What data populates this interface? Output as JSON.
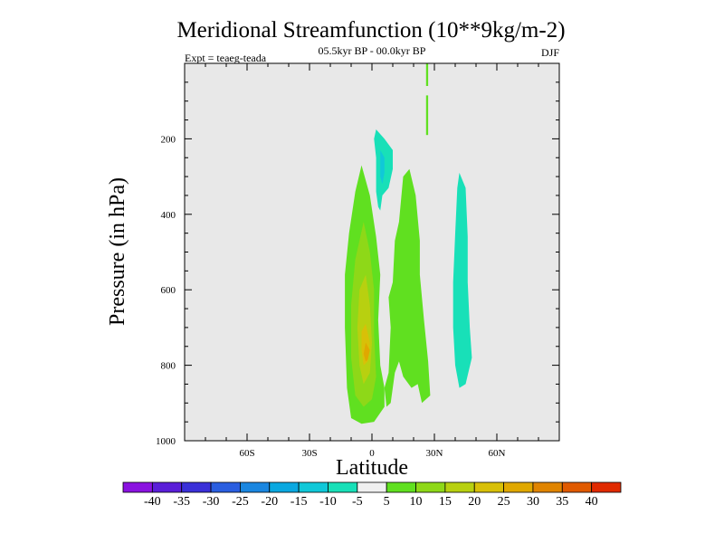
{
  "chart_data": {
    "type": "contour",
    "title": "Meridional Streamfunction (10**9kg/m-2)",
    "subtitle": "05.5kyr BP - 00.0kyr BP",
    "left_note": "Expt = teaeg-teada",
    "right_note": "DJF",
    "xlabel": "Latitude",
    "ylabel": "Pressure (in hPa)",
    "xlim": [
      -90,
      90
    ],
    "ylim": [
      1000,
      0
    ],
    "x_ticks": [
      {
        "value": -60,
        "label": "60S"
      },
      {
        "value": -30,
        "label": "30S"
      },
      {
        "value": 0,
        "label": "0"
      },
      {
        "value": 30,
        "label": "30N"
      },
      {
        "value": 60,
        "label": "60N"
      }
    ],
    "y_ticks": [
      {
        "value": 200,
        "label": "200"
      },
      {
        "value": 400,
        "label": "400"
      },
      {
        "value": 600,
        "label": "600"
      },
      {
        "value": 800,
        "label": "800"
      },
      {
        "value": 1000,
        "label": "1000"
      }
    ],
    "colorbar": {
      "labels": [
        "-40",
        "-35",
        "-30",
        "-25",
        "-20",
        "-15",
        "-10",
        "-5",
        "5",
        "10",
        "15",
        "20",
        "25",
        "30",
        "35",
        "40"
      ],
      "colors": [
        "#8a12e0",
        "#5a1ed8",
        "#3a30d8",
        "#2a5ee0",
        "#1a86e0",
        "#0aa8e0",
        "#10c8d8",
        "#18e0b8",
        "#f0f0f0",
        "#60e020",
        "#8ed818",
        "#b8d010",
        "#d8c008",
        "#e0a800",
        "#e08400",
        "#e05a00",
        "#e02a00"
      ]
    },
    "regions": [
      {
        "name": "positive-5-10-main",
        "level": "5-10",
        "color": "#60e020",
        "points": [
          [
            -5,
            270
          ],
          [
            -1,
            350
          ],
          [
            2,
            460
          ],
          [
            4,
            560
          ],
          [
            3,
            680
          ],
          [
            4,
            800
          ],
          [
            6,
            860
          ],
          [
            6,
            910
          ],
          [
            1,
            950
          ],
          [
            -5,
            955
          ],
          [
            -10,
            940
          ],
          [
            -12,
            860
          ],
          [
            -13,
            700
          ],
          [
            -13,
            560
          ],
          [
            -11,
            450
          ],
          [
            -8,
            340
          ]
        ]
      },
      {
        "name": "positive-10-15-core",
        "level": "10-15",
        "color": "#8ed818",
        "points": [
          [
            -4,
            420
          ],
          [
            -1,
            500
          ],
          [
            1,
            600
          ],
          [
            1,
            720
          ],
          [
            2,
            830
          ],
          [
            0,
            890
          ],
          [
            -4,
            910
          ],
          [
            -8,
            880
          ],
          [
            -10,
            780
          ],
          [
            -10,
            640
          ],
          [
            -8,
            520
          ]
        ]
      },
      {
        "name": "positive-15-20-core",
        "level": "15-20",
        "color": "#b8d010",
        "points": [
          [
            -3,
            560
          ],
          [
            -1,
            640
          ],
          [
            0,
            740
          ],
          [
            -1,
            820
          ],
          [
            -4,
            850
          ],
          [
            -6,
            800
          ],
          [
            -7,
            700
          ],
          [
            -6,
            600
          ]
        ]
      },
      {
        "name": "positive-20-25-core",
        "level": "20-25",
        "color": "#d8c008",
        "points": [
          [
            -3,
            690
          ],
          [
            -1,
            740
          ],
          [
            -2,
            790
          ],
          [
            -4,
            800
          ],
          [
            -5,
            760
          ],
          [
            -5,
            710
          ]
        ]
      },
      {
        "name": "positive-25-30-spot",
        "level": "25-30",
        "color": "#e0a800",
        "points": [
          [
            -3,
            740
          ],
          [
            -1,
            760
          ],
          [
            -2,
            785
          ],
          [
            -3,
            790
          ],
          [
            -4,
            770
          ]
        ]
      },
      {
        "name": "positive-5-10-east",
        "level": "5-10",
        "color": "#60e020",
        "points": [
          [
            6,
            860
          ],
          [
            8,
            820
          ],
          [
            9,
            700
          ],
          [
            8,
            620
          ],
          [
            10,
            580
          ],
          [
            11,
            470
          ],
          [
            13,
            420
          ],
          [
            15,
            300
          ],
          [
            18,
            280
          ],
          [
            21,
            350
          ],
          [
            23,
            470
          ],
          [
            23,
            560
          ],
          [
            25,
            680
          ],
          [
            27,
            790
          ],
          [
            28,
            880
          ],
          [
            24,
            900
          ],
          [
            22,
            850
          ],
          [
            19,
            860
          ],
          [
            15,
            830
          ],
          [
            13,
            790
          ],
          [
            11,
            820
          ],
          [
            9,
            900
          ],
          [
            7,
            910
          ]
        ]
      },
      {
        "name": "positive-5-10-top",
        "level": "5-10",
        "color": "#60e020",
        "points": [
          [
            26,
            0
          ],
          [
            27,
            0
          ],
          [
            27,
            60
          ],
          [
            26,
            60
          ]
        ]
      },
      {
        "name": "positive-5-10-top2",
        "level": "5-10",
        "color": "#60e020",
        "points": [
          [
            26,
            85
          ],
          [
            27,
            85
          ],
          [
            27,
            190
          ],
          [
            26,
            190
          ]
        ]
      },
      {
        "name": "negative-5-10-upper",
        "level": "-10--5",
        "color": "#18e0b8",
        "points": [
          [
            2,
            175
          ],
          [
            6,
            200
          ],
          [
            10,
            230
          ],
          [
            10,
            280
          ],
          [
            8,
            330
          ],
          [
            5,
            350
          ],
          [
            4,
            390
          ],
          [
            3,
            380
          ],
          [
            2,
            340
          ],
          [
            2,
            250
          ],
          [
            1,
            200
          ]
        ]
      },
      {
        "name": "negative-10-15-upper",
        "level": "-15--10",
        "color": "#10c8d8",
        "points": [
          [
            4,
            230
          ],
          [
            6,
            250
          ],
          [
            6,
            290
          ],
          [
            5,
            320
          ],
          [
            4,
            300
          ]
        ]
      },
      {
        "name": "negative-5-10-north",
        "level": "-10--5",
        "color": "#18e0b8",
        "points": [
          [
            42,
            290
          ],
          [
            45,
            330
          ],
          [
            46,
            460
          ],
          [
            46,
            580
          ],
          [
            47,
            700
          ],
          [
            48,
            780
          ],
          [
            45,
            850
          ],
          [
            42,
            860
          ],
          [
            40,
            800
          ],
          [
            39,
            700
          ],
          [
            39,
            580
          ],
          [
            40,
            450
          ],
          [
            41,
            330
          ]
        ]
      }
    ]
  }
}
